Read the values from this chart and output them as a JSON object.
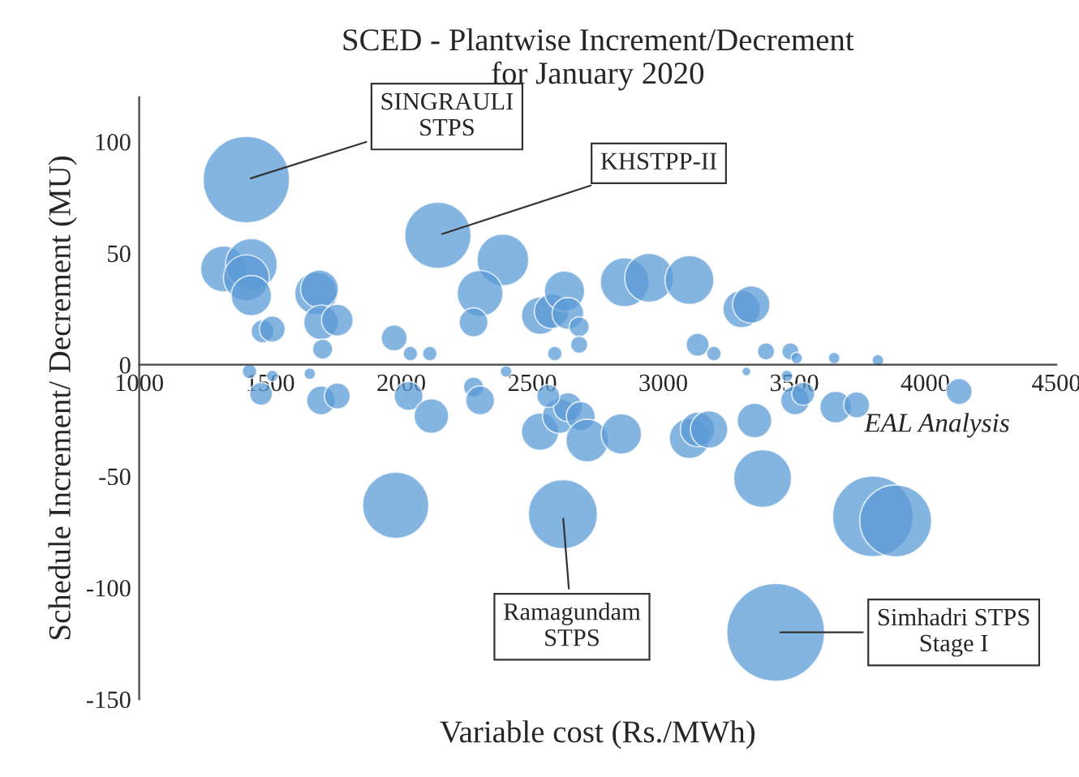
{
  "chart_data": {
    "type": "bubble",
    "title": "SCED - Plantwise Increment/Decrement\nfor January 2020",
    "xlabel": "Variable cost (Rs./MWh)",
    "ylabel": "Schedule Increment/ Decrement (MU)",
    "xlim": [
      1000,
      4500
    ],
    "xticks": [
      1000,
      1500,
      2000,
      2500,
      3000,
      3500,
      4000,
      4500
    ],
    "ylim": [
      -150,
      120
    ],
    "yticks": [
      -150,
      -100,
      -50,
      0,
      50,
      100
    ],
    "grid": false,
    "legend": false,
    "series": [
      {
        "color": "#5b9bd5",
        "x": [
          1409,
          1322,
          1428,
          1409,
          1428,
          1471,
          1508,
          1675,
          1688,
          1694,
          1756,
          1700,
          1973,
          2140,
          2388,
          2301,
          2276,
          2530,
          2574,
          2623,
          2636,
          2679,
          2679,
          2586,
          2853,
          2946,
          3100,
          3299,
          3336,
          3131,
          3193,
          3392,
          3485,
          3509,
          3652,
          3819,
          2035,
          2109,
          1465,
          1421,
          1508,
          1651,
          1694,
          1756,
          1979,
          2028,
          2115,
          2276,
          2301,
          2400,
          2530,
          2605,
          2636,
          2685,
          2710,
          2617,
          2561,
          2840,
          3100,
          3131,
          3175,
          3348,
          3379,
          3429,
          3503,
          3534,
          3658,
          3738,
          3800,
          3887,
          4129,
          3472,
          3317
        ],
        "values": [
          83,
          43,
          45,
          39,
          31,
          15,
          16,
          32,
          34,
          19,
          20,
          7,
          12,
          58,
          47,
          32,
          19,
          22,
          24,
          33,
          23,
          17,
          9,
          5,
          37,
          39,
          38,
          25,
          27,
          9,
          5,
          6,
          6,
          3,
          3,
          2,
          5,
          5,
          -13,
          -3,
          -5,
          -4,
          -16,
          -14,
          -63,
          -14,
          -23,
          -10,
          -16,
          -3,
          -30,
          -23,
          -19,
          -23,
          -34,
          -67,
          -14,
          -31,
          -33,
          -29,
          -29,
          -25,
          -51,
          -120,
          -16,
          -13,
          -19,
          -18,
          -68,
          -70,
          -12,
          -5,
          -3
        ],
        "sizes": [
          0.78,
          0.22,
          0.28,
          0.22,
          0.17,
          0.055,
          0.07,
          0.19,
          0.15,
          0.125,
          0.105,
          0.042,
          0.07,
          0.46,
          0.28,
          0.22,
          0.087,
          0.146,
          0.125,
          0.17,
          0.105,
          0.042,
          0.031,
          0.022,
          0.25,
          0.25,
          0.25,
          0.146,
          0.146,
          0.055,
          0.022,
          0.031,
          0.031,
          0.014,
          0.014,
          0.014,
          0.022,
          0.022,
          0.055,
          0.022,
          0.014,
          0.014,
          0.087,
          0.07,
          0.46,
          0.087,
          0.125,
          0.042,
          0.087,
          0.014,
          0.146,
          0.125,
          0.087,
          0.087,
          0.19,
          0.5,
          0.055,
          0.17,
          0.17,
          0.125,
          0.146,
          0.125,
          0.35,
          1,
          0.087,
          0.055,
          0.105,
          0.07,
          0.68,
          0.54,
          0.07,
          0.014,
          0.008
        ]
      }
    ],
    "annotations": [
      {
        "text": "SINGRAULI\nSTPS",
        "x": 1409,
        "y": 83
      },
      {
        "text": "KHSTPP-II",
        "x": 2140,
        "y": 58
      },
      {
        "text": "Ramagundam\nSTPS",
        "x": 2617,
        "y": -67
      },
      {
        "text": "Simhadri STPS\nStage I",
        "x": 3429,
        "y": -120
      },
      "EAL Analysis"
    ]
  }
}
